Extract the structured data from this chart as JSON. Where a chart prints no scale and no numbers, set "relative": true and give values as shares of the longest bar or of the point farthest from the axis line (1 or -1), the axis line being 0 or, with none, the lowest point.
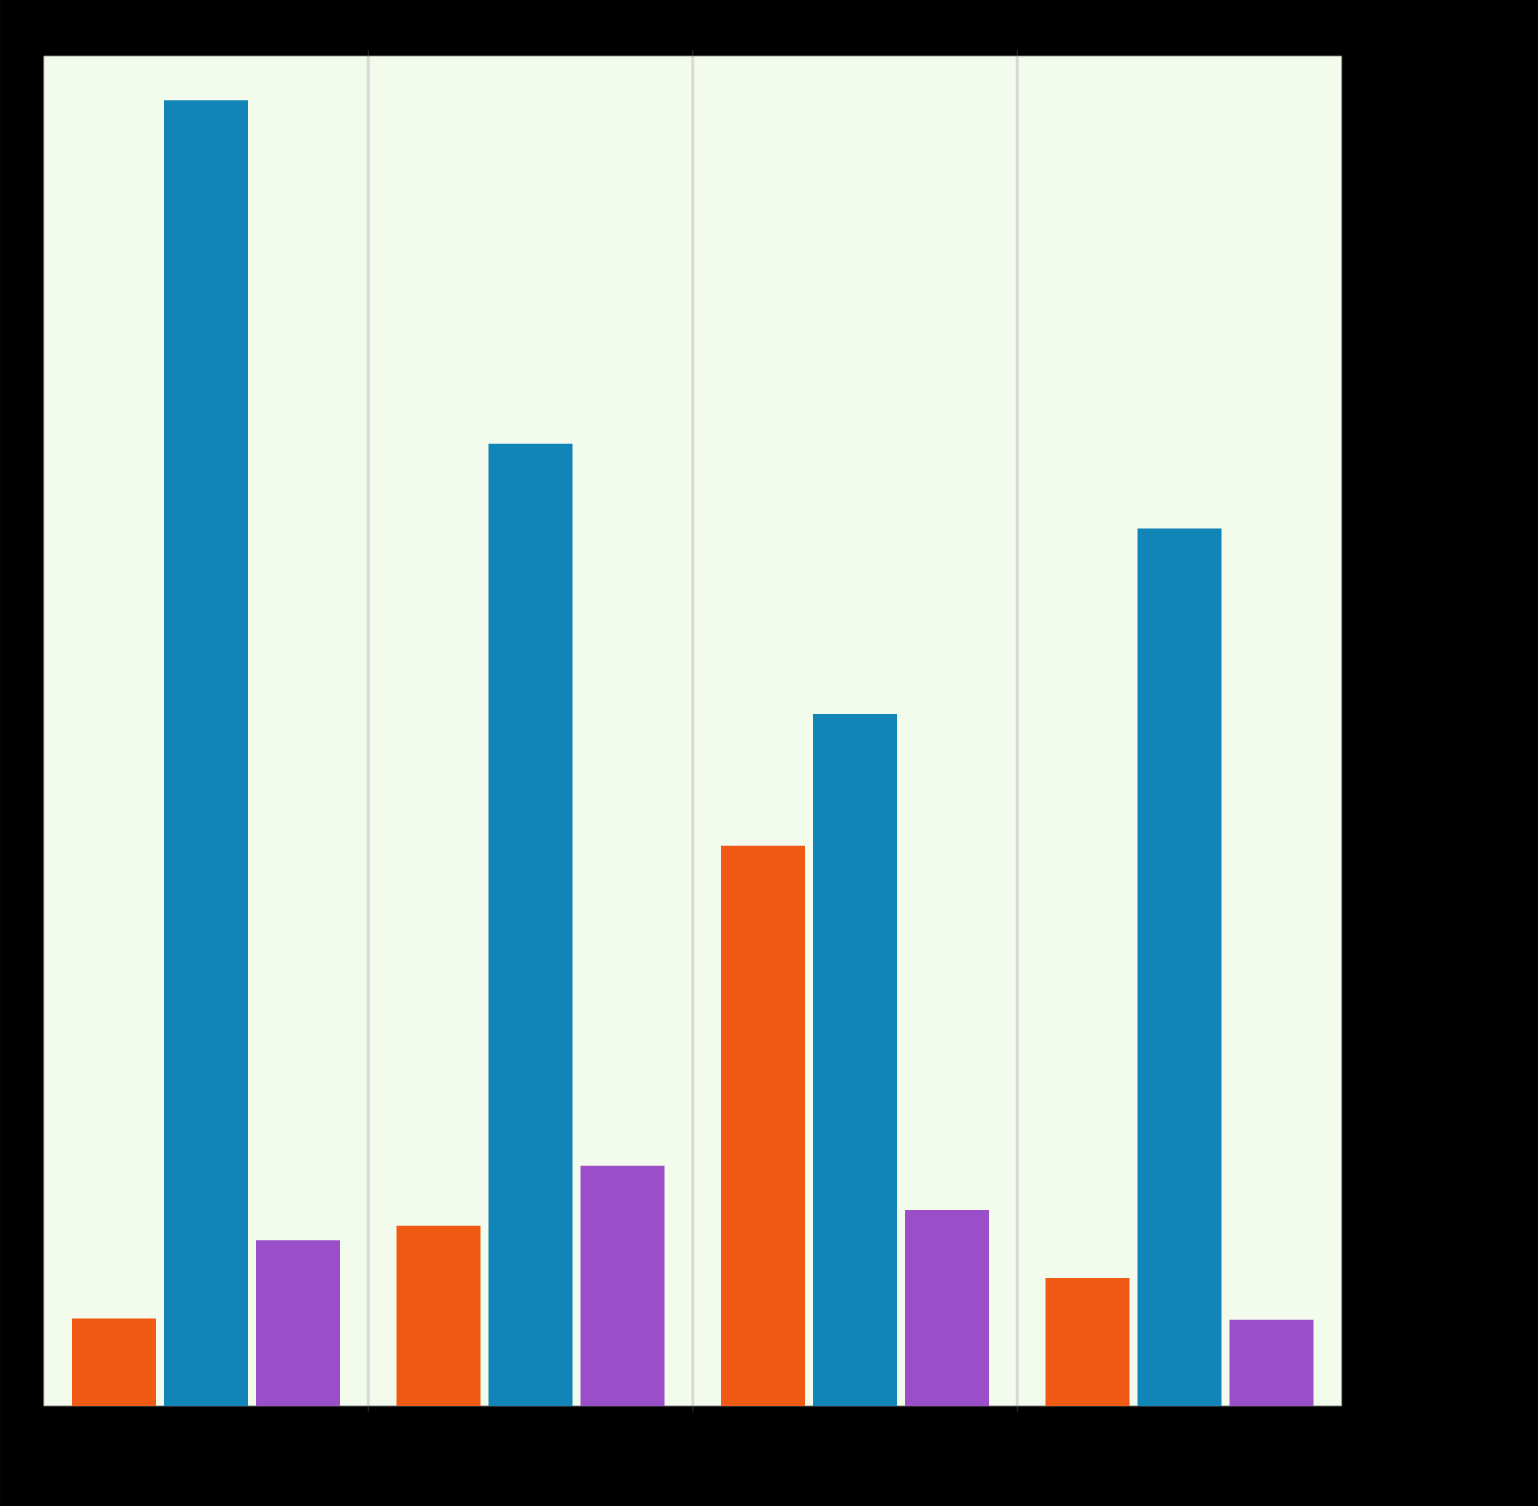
{
  "chart_data": {
    "type": "bar",
    "relative": true,
    "grid": "x",
    "categories": [
      null,
      null,
      null,
      null
    ],
    "series": [
      {
        "color": "#f05a14",
        "values": [
          0.067,
          0.138,
          0.429,
          0.098
        ]
      },
      {
        "color": "#1185b8",
        "values": [
          1,
          0.737,
          0.53,
          0.672
        ]
      },
      {
        "color": "#9a4fc8",
        "values": [
          0.127,
          0.184,
          0.15,
          0.066
        ]
      }
    ]
  }
}
